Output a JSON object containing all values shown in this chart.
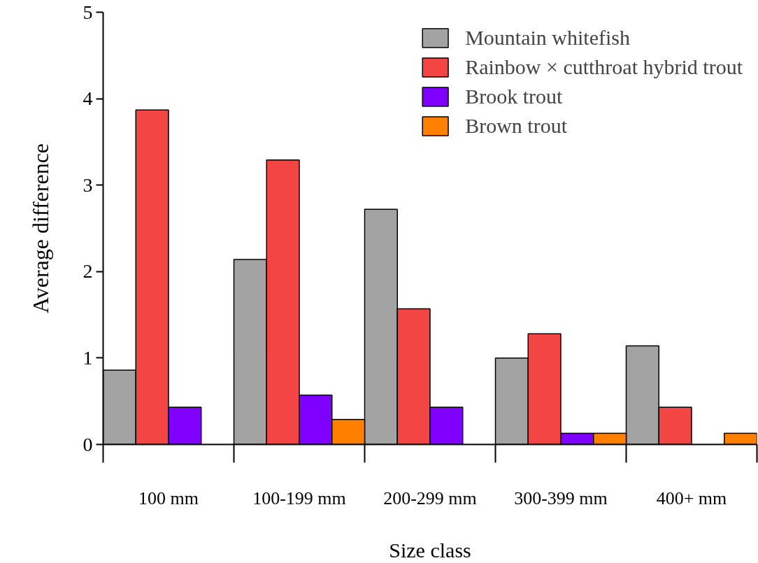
{
  "chart_data": {
    "type": "bar",
    "xlabel": "Size class",
    "ylabel": "Average difference",
    "categories": [
      "100 mm",
      "100-199 mm",
      "200-299 mm",
      "300-399 mm",
      "400+ mm"
    ],
    "series": [
      {
        "name": "Mountain whitefish",
        "color": "#a3a3a3",
        "values": [
          0.86,
          2.14,
          2.72,
          1.0,
          1.14
        ]
      },
      {
        "name": "Rainbow × cutthroat hybrid trout",
        "color": "#f44545",
        "values": [
          3.87,
          3.29,
          1.57,
          1.28,
          0.43
        ]
      },
      {
        "name": "Brook trout",
        "color": "#8000ff",
        "values": [
          0.43,
          0.57,
          0.43,
          0.13,
          null
        ]
      },
      {
        "name": "Brown trout",
        "color": "#ff8000",
        "values": [
          null,
          0.29,
          null,
          0.13,
          0.13
        ]
      }
    ],
    "ylim": [
      0,
      5
    ],
    "yticks": [
      0,
      1,
      2,
      3,
      4,
      5
    ],
    "grid": false,
    "legend": "top right"
  }
}
